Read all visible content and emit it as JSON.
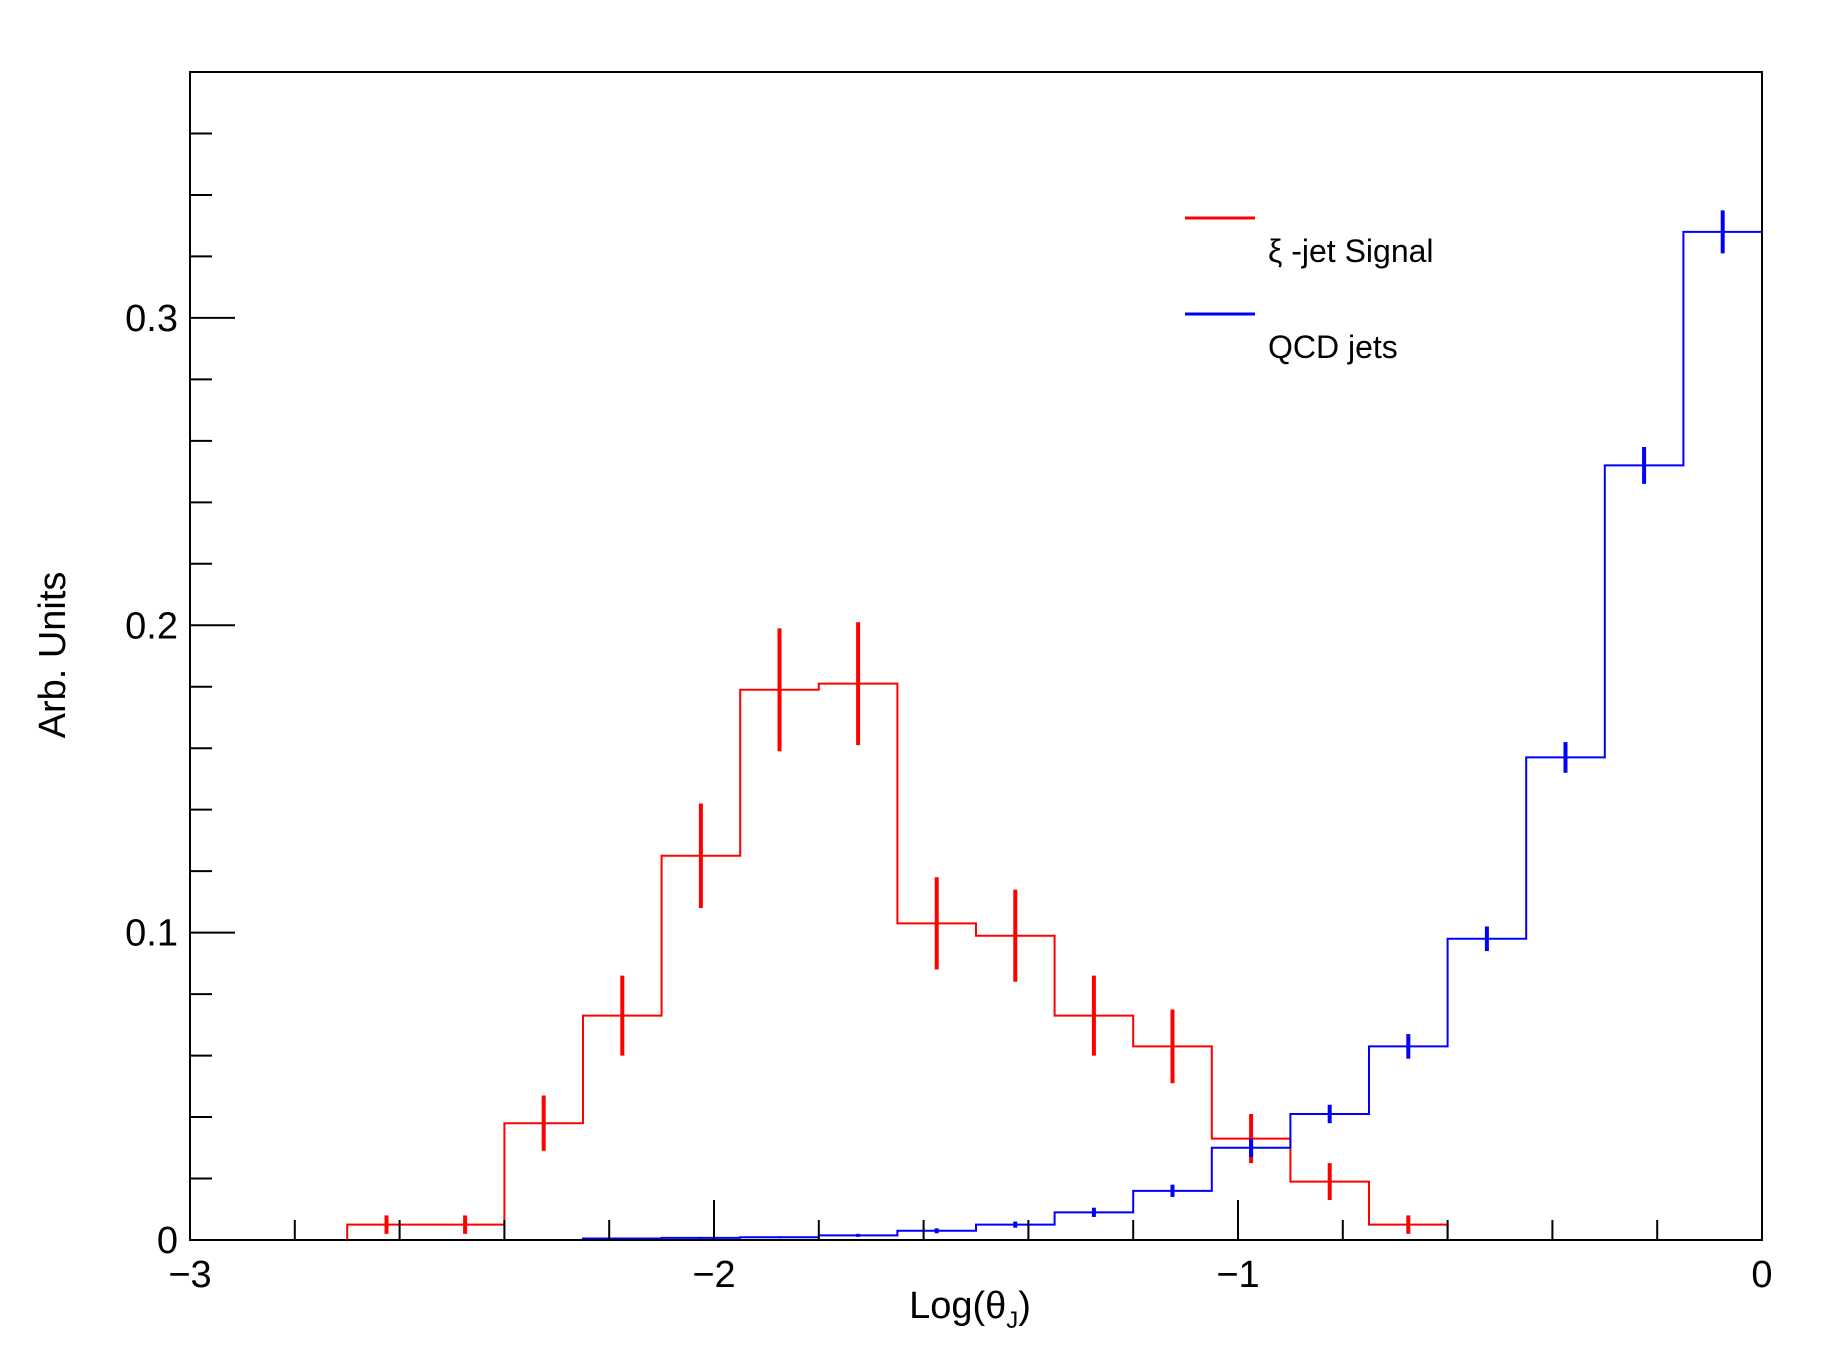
{
  "chart_data": {
    "type": "line",
    "title": "",
    "xlabel": "Log(θ",
    "xlabel_sub": "J",
    "xlabel_close": ")",
    "ylabel": "Arb. Units",
    "xlim": [
      -3,
      0
    ],
    "ylim": [
      0,
      0.38
    ],
    "x_ticks": [
      "−3",
      "−2",
      "−1",
      "0"
    ],
    "x_tick_values": [
      -3,
      -2,
      -1,
      0
    ],
    "y_ticks": [
      "0",
      "0.1",
      "0.2",
      "0.3"
    ],
    "y_tick_values": [
      0,
      0.1,
      0.2,
      0.3
    ],
    "grid": false,
    "legend_position": "top-right",
    "bin_edges": [
      -3.0,
      -2.85,
      -2.7,
      -2.55,
      -2.4,
      -2.25,
      -2.1,
      -1.95,
      -1.8,
      -1.65,
      -1.5,
      -1.35,
      -1.2,
      -1.05,
      -0.9,
      -0.75,
      -0.6,
      -0.45,
      -0.3,
      -0.15,
      0.0
    ],
    "series": [
      {
        "name": "ξ -jet Signal",
        "color": "#ff0000",
        "step_edges": [
          -3.0,
          -2.85,
          -2.7,
          -2.55,
          -2.4,
          -2.25,
          -2.1,
          -1.95,
          -1.8,
          -1.65,
          -1.5,
          -1.35,
          -1.2,
          -1.05,
          -0.9,
          -0.75,
          -0.6
        ],
        "values": [
          0,
          0.005,
          0.005,
          0.038,
          0.073,
          0.125,
          0.179,
          0.181,
          0.103,
          0.099,
          0.073,
          0.063,
          0.033,
          0.019,
          0.005
        ],
        "errors": [
          0,
          0.003,
          0.003,
          0.009,
          0.013,
          0.017,
          0.02,
          0.02,
          0.015,
          0.015,
          0.013,
          0.012,
          0.008,
          0.006,
          0.003
        ],
        "start_bin": 1
      },
      {
        "name": "QCD jets",
        "color": "#0000ff",
        "step_edges": [
          -2.25,
          -2.1,
          -1.95,
          -1.8,
          -1.65,
          -1.5,
          -1.35,
          -1.2,
          -1.05,
          -0.9,
          -0.75,
          -0.6,
          -0.45,
          -0.3,
          -0.15,
          0.0
        ],
        "values": [
          0.0005,
          0.0007,
          0.0009,
          0.0015,
          0.003,
          0.005,
          0.009,
          0.016,
          0.03,
          0.041,
          0.063,
          0.098,
          0.157,
          0.252,
          0.328
        ],
        "errors": [
          0.0002,
          0.0003,
          0.0003,
          0.0005,
          0.0008,
          0.001,
          0.0015,
          0.002,
          0.003,
          0.003,
          0.004,
          0.004,
          0.005,
          0.006,
          0.007
        ]
      }
    ]
  }
}
